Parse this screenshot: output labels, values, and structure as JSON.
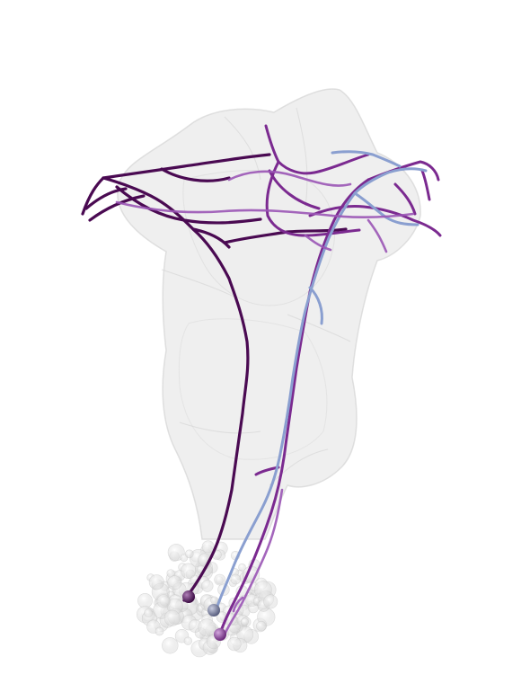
{
  "scene": {
    "background_color": "#ffffff",
    "mesh_color": "#d9d9d9",
    "soma_cloud_color": "#cfcfcf",
    "neurons": [
      {
        "name": "neuron-1",
        "color": "#4a0a52"
      },
      {
        "name": "neuron-2",
        "color": "#7b2a90"
      },
      {
        "name": "neuron-3",
        "color": "#8a9fd0"
      },
      {
        "name": "neuron-4",
        "color": "#9a55b5"
      }
    ],
    "soma_markers": [
      {
        "name": "soma-1",
        "color": "#5b2466"
      },
      {
        "name": "soma-2",
        "color": "#7a8096"
      },
      {
        "name": "soma-3",
        "color": "#8b4a9a"
      }
    ]
  }
}
